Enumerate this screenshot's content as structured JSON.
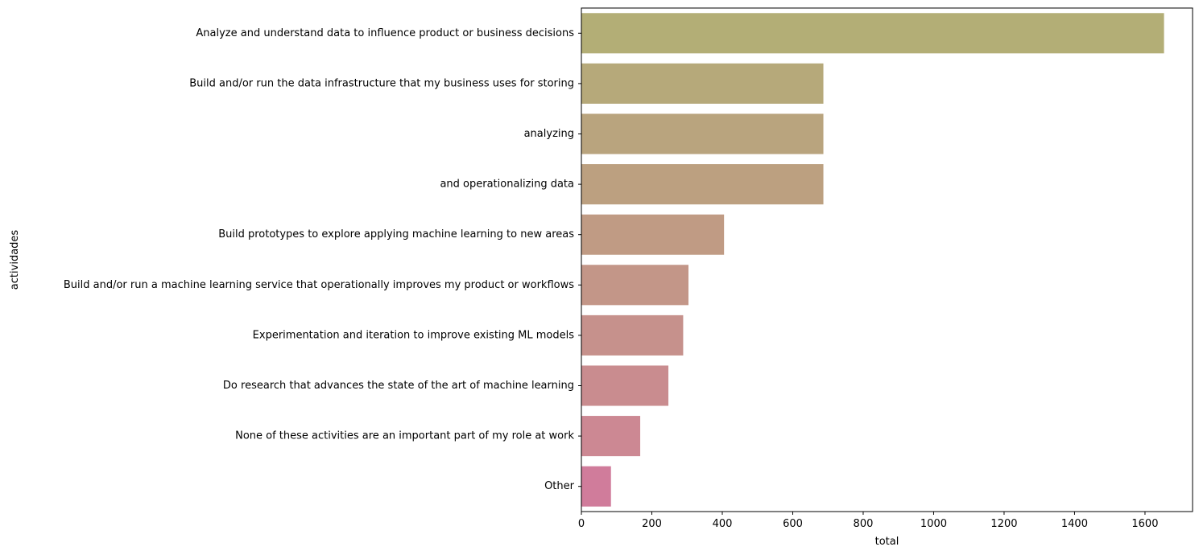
{
  "chart_data": {
    "type": "bar",
    "orientation": "horizontal",
    "xlabel": "total",
    "ylabel": "actividades",
    "xlim": [
      0,
      1735
    ],
    "xticks": [
      0,
      200,
      400,
      600,
      800,
      1000,
      1200,
      1400,
      1600
    ],
    "grid": false,
    "categories": [
      "Analyze and understand data to influence product or business decisions",
      "Build and/or run the data infrastructure that my business uses for storing",
      "analyzing",
      "and operationalizing data",
      "Build prototypes to explore applying machine learning to new areas",
      "Build and/or run a machine learning service that operationally improves my product or workflows",
      "Experimentation and iteration to improve existing ML models",
      "Do research that advances the state of the art of machine learning",
      "None of these activities are an important part of my role at work",
      "Other"
    ],
    "values": [
      1654,
      687,
      687,
      687,
      405,
      304,
      289,
      247,
      167,
      84
    ],
    "colors": [
      "#b3ae76",
      "#b6a97a",
      "#b9a47e",
      "#bca080",
      "#c09b84",
      "#c39688",
      "#c6918c",
      "#c98c8f",
      "#cc8893",
      "#d07c9b"
    ]
  }
}
